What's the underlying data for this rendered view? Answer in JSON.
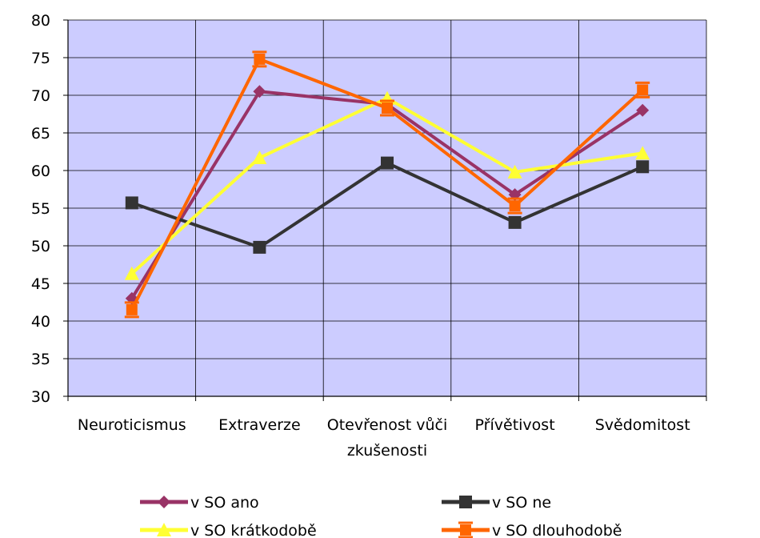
{
  "chart_data": {
    "type": "line",
    "categories": [
      [
        "Neuroticismus"
      ],
      [
        "Extraverze"
      ],
      [
        "Otevřenost vůči",
        "zkušenosti"
      ],
      [
        "Přívětivost"
      ],
      [
        "Svědomitost"
      ]
    ],
    "ylim": [
      30,
      80
    ],
    "yticks": [
      30,
      35,
      40,
      45,
      50,
      55,
      60,
      65,
      70,
      75,
      80
    ],
    "grid": true,
    "plot_background": "#CCCCFF",
    "legend_position": "bottom",
    "series": [
      {
        "name": "v SO ano",
        "color": "#993366",
        "marker": "diamond",
        "values": [
          43.0,
          70.5,
          68.8,
          56.8,
          68.0
        ]
      },
      {
        "name": "v SO ne",
        "color": "#333333",
        "marker": "square",
        "values": [
          55.7,
          49.8,
          61.0,
          53.1,
          60.5
        ]
      },
      {
        "name": "v SO krátkodobě",
        "color": "#FFFF33",
        "marker": "triangle",
        "values": [
          46.3,
          61.7,
          69.6,
          59.8,
          62.3
        ]
      },
      {
        "name": "v SO dlouhodobě",
        "color": "#FF6600",
        "marker": "asterisk",
        "values": [
          41.5,
          74.8,
          68.3,
          55.3,
          70.7
        ]
      }
    ]
  }
}
